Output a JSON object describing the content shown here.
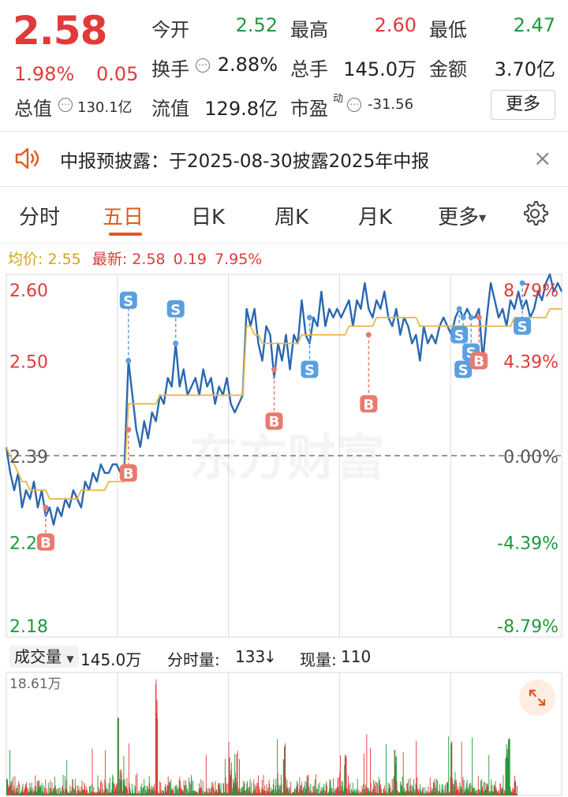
{
  "quote": {
    "price": "2.58",
    "change_pct": "1.98%",
    "change": "0.05",
    "market_cap_label": "总值",
    "market_cap": "130.1亿",
    "fields": [
      {
        "label": "今开",
        "value": "2.52",
        "color": "green"
      },
      {
        "label": "最高",
        "value": "2.60",
        "color": "red"
      },
      {
        "label": "最低",
        "value": "2.47",
        "color": "green"
      },
      {
        "label": "换手",
        "value": "2.88%",
        "color": "dark"
      },
      {
        "label": "总手",
        "value": "145.0万",
        "color": "dark"
      },
      {
        "label": "金额",
        "value": "3.70亿",
        "color": "dark"
      },
      {
        "label": "流值",
        "value": "129.8亿",
        "color": "dark"
      },
      {
        "label": "市盈",
        "value": "-31.56",
        "color": "dark"
      }
    ],
    "pe_superscript": "动",
    "info_glyph": "⋯",
    "more_label": "更多"
  },
  "notice": {
    "icon": "speaker-icon",
    "text": "中报预披露：于2025-08-30披露2025年中报",
    "close": "×"
  },
  "tabs": [
    {
      "label": "分时",
      "active": false
    },
    {
      "label": "五日",
      "active": true
    },
    {
      "label": "日K",
      "active": false
    },
    {
      "label": "周K",
      "active": false
    },
    {
      "label": "月K",
      "active": false
    },
    {
      "label": "更多",
      "active": false,
      "caret": "▼"
    }
  ],
  "info_line": {
    "avg_label": "均价:",
    "avg_value": "2.55",
    "latest_label": "最新:",
    "latest_value": "2.58",
    "latest_change": "0.19",
    "latest_pct": "7.95%"
  },
  "chart_data": {
    "type": "line",
    "days": 5,
    "price_ticks_left": [
      "2.60",
      "2.50",
      "2.39",
      "2.29",
      "2.18"
    ],
    "pct_ticks_right": [
      "8.79%",
      "4.39%",
      "0.00%",
      "-4.39%",
      "-8.79%"
    ],
    "ylim": [
      2.18,
      2.6
    ],
    "prev_close": 2.39,
    "watermark": "东方财富",
    "series": [
      {
        "name": "price",
        "color": "#2a68b0",
        "values": [
          2.4,
          2.37,
          2.35,
          2.37,
          2.33,
          2.35,
          2.34,
          2.36,
          2.33,
          2.35,
          2.32,
          2.33,
          2.31,
          2.33,
          2.32,
          2.34,
          2.33,
          2.35,
          2.34,
          2.33,
          2.36,
          2.35,
          2.37,
          2.36,
          2.38,
          2.37,
          2.37,
          2.38,
          2.38,
          2.37,
          2.38,
          2.5,
          2.46,
          2.42,
          2.4,
          2.43,
          2.41,
          2.44,
          2.43,
          2.46,
          2.45,
          2.48,
          2.47,
          2.52,
          2.47,
          2.49,
          2.46,
          2.47,
          2.48,
          2.46,
          2.49,
          2.47,
          2.48,
          2.45,
          2.47,
          2.46,
          2.48,
          2.45,
          2.44,
          2.45,
          2.46,
          2.56,
          2.54,
          2.56,
          2.52,
          2.5,
          2.54,
          2.53,
          2.48,
          2.52,
          2.5,
          2.53,
          2.49,
          2.53,
          2.52,
          2.57,
          2.53,
          2.52,
          2.55,
          2.54,
          2.58,
          2.54,
          2.56,
          2.55,
          2.56,
          2.55,
          2.56,
          2.57,
          2.54,
          2.57,
          2.56,
          2.59,
          2.56,
          2.55,
          2.57,
          2.56,
          2.58,
          2.55,
          2.54,
          2.56,
          2.53,
          2.55,
          2.54,
          2.52,
          2.53,
          2.5,
          2.54,
          2.52,
          2.53,
          2.52,
          2.54,
          2.55,
          2.54,
          2.53,
          2.55,
          2.56,
          2.55,
          2.56,
          2.55,
          2.55,
          2.56,
          2.5,
          2.55,
          2.59,
          2.57,
          2.55,
          2.56,
          2.54,
          2.57,
          2.56,
          2.58,
          2.56,
          2.57,
          2.55,
          2.56,
          2.58,
          2.57,
          2.59,
          2.6,
          2.58,
          2.59,
          2.58
        ]
      },
      {
        "name": "avg",
        "color": "#e8b84a",
        "values": [
          2.4,
          2.39,
          2.38,
          2.37,
          2.36,
          2.36,
          2.35,
          2.35,
          2.35,
          2.35,
          2.35,
          2.34,
          2.34,
          2.34,
          2.34,
          2.34,
          2.34,
          2.34,
          2.34,
          2.35,
          2.35,
          2.35,
          2.35,
          2.35,
          2.35,
          2.35,
          2.36,
          2.36,
          2.36,
          2.36,
          2.36,
          2.45,
          2.45,
          2.45,
          2.45,
          2.45,
          2.45,
          2.45,
          2.45,
          2.46,
          2.46,
          2.46,
          2.46,
          2.46,
          2.46,
          2.46,
          2.46,
          2.46,
          2.46,
          2.46,
          2.46,
          2.46,
          2.46,
          2.46,
          2.46,
          2.46,
          2.46,
          2.46,
          2.46,
          2.46,
          2.46,
          2.54,
          2.54,
          2.53,
          2.53,
          2.52,
          2.52,
          2.52,
          2.52,
          2.52,
          2.52,
          2.52,
          2.52,
          2.52,
          2.52,
          2.53,
          2.53,
          2.53,
          2.53,
          2.53,
          2.53,
          2.53,
          2.53,
          2.53,
          2.53,
          2.53,
          2.53,
          2.54,
          2.54,
          2.54,
          2.54,
          2.54,
          2.54,
          2.54,
          2.55,
          2.55,
          2.55,
          2.55,
          2.55,
          2.55,
          2.55,
          2.55,
          2.55,
          2.55,
          2.55,
          2.54,
          2.54,
          2.54,
          2.54,
          2.54,
          2.54,
          2.54,
          2.54,
          2.54,
          2.54,
          2.54,
          2.54,
          2.54,
          2.54,
          2.54,
          2.54,
          2.54,
          2.54,
          2.54,
          2.54,
          2.54,
          2.54,
          2.54,
          2.54,
          2.55,
          2.55,
          2.55,
          2.55,
          2.55,
          2.55,
          2.55,
          2.55,
          2.55,
          2.56,
          2.56,
          2.56,
          2.56
        ]
      }
    ],
    "markers": [
      {
        "type": "B",
        "index": 10,
        "price": 2.33,
        "label_price": 2.29
      },
      {
        "type": "S",
        "index": 31,
        "price": 2.5,
        "label_price": 2.57
      },
      {
        "type": "B",
        "index": 31,
        "price": 2.42,
        "label_price": 2.37
      },
      {
        "type": "S",
        "index": 43,
        "price": 2.52,
        "label_price": 2.56
      },
      {
        "type": "B",
        "index": 68,
        "price": 2.49,
        "label_price": 2.43
      },
      {
        "type": "S",
        "index": 77,
        "price": 2.55,
        "label_price": 2.49
      },
      {
        "type": "B",
        "index": 92,
        "price": 2.53,
        "label_price": 2.45
      },
      {
        "type": "S",
        "index": 115,
        "price": 2.56,
        "label_price": 2.53
      },
      {
        "type": "S",
        "index": 116,
        "price": 2.55,
        "label_price": 2.49
      },
      {
        "type": "S",
        "index": 118,
        "price": 2.55,
        "label_price": 2.51
      },
      {
        "type": "B",
        "index": 120,
        "price": 2.55,
        "label_price": 2.5
      },
      {
        "type": "S",
        "index": 131,
        "price": 2.59,
        "label_price": 2.54
      }
    ],
    "marker_colors": {
      "B": "#e97a6e",
      "S": "#5aa0e0"
    }
  },
  "volume": {
    "selector_label": "成交量",
    "selector_caret": "▼",
    "total": "145.0万",
    "minute_label": "分时量:",
    "minute_value": "133",
    "minute_arrow": "↓",
    "current_label": "现量:",
    "current_value": "110",
    "max_label": "18.61万",
    "max": 18.61,
    "up_color": "#e13a3a",
    "down_color": "#1f9a3c"
  },
  "colors": {
    "red": "#e13a3a",
    "green": "#1f9a3c",
    "accent": "#e0581f"
  }
}
